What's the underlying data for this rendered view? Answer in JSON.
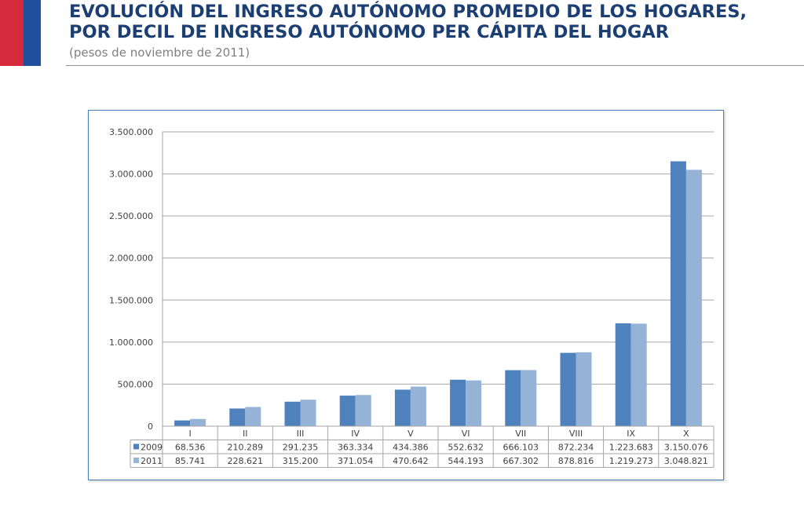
{
  "header": {
    "title_line1": "EVOLUCIÓN DEL INGRESO AUTÓNOMO PROMEDIO DE LOS HOGARES,",
    "title_line2": "POR DECIL DE INGRESO AUTÓNOMO PER CÁPITA DEL HOGAR",
    "subtitle": "(pesos de noviembre de 2011)"
  },
  "colors": {
    "flag_red": "#d5293c",
    "flag_blue": "#1f4f9e",
    "title": "#1c3f73",
    "series_2009": "#4f81bd",
    "series_2011": "#95b3d7"
  },
  "chart_data": {
    "type": "bar",
    "categories": [
      "I",
      "II",
      "III",
      "IV",
      "V",
      "VI",
      "VII",
      "VIII",
      "IX",
      "X"
    ],
    "series": [
      {
        "name": "2009",
        "values": [
          68536,
          210289,
          291235,
          363334,
          434386,
          552632,
          666103,
          872234,
          1223683,
          3150076
        ],
        "labels": [
          "68.536",
          "210.289",
          "291.235",
          "363.334",
          "434.386",
          "552.632",
          "666.103",
          "872.234",
          "1.223.683",
          "3.150.076"
        ]
      },
      {
        "name": "2011",
        "values": [
          85741,
          228621,
          315200,
          371054,
          470642,
          544193,
          667302,
          878816,
          1219273,
          3048821
        ],
        "labels": [
          "85.741",
          "228.621",
          "315.200",
          "371.054",
          "470.642",
          "544.193",
          "667.302",
          "878.816",
          "1.219.273",
          "3.048.821"
        ]
      }
    ],
    "ylim": [
      0,
      3500000
    ],
    "yticks": [
      0,
      500000,
      1000000,
      1500000,
      2000000,
      2500000,
      3000000,
      3500000
    ],
    "ytick_labels": [
      "0",
      "500.000",
      "1.000.000",
      "1.500.000",
      "2.000.000",
      "2.500.000",
      "3.000.000",
      "3.500.000"
    ],
    "grid": true,
    "data_table": true,
    "xlabel": "",
    "ylabel": ""
  }
}
